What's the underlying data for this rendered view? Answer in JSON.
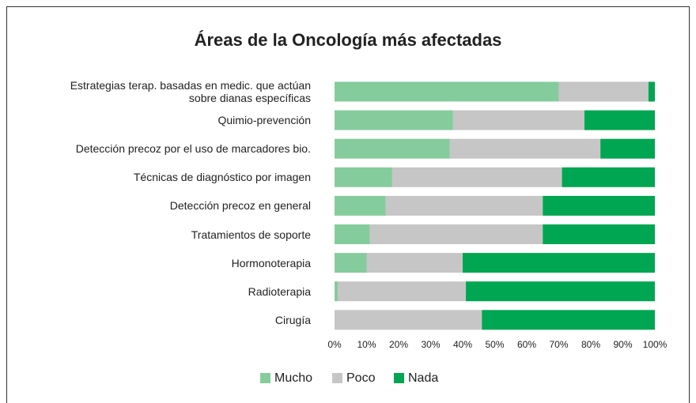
{
  "chart_data": {
    "type": "stacked_barh",
    "title": "Áreas de la Oncología más afectadas",
    "categories": [
      "Estrategias terap. basadas en medic. que actúan\nsobre dianas específicas",
      "Quimio-prevención",
      "Detección precoz por el uso de marcadores bio.",
      "Técnicas de diagnóstico por imagen",
      "Detección precoz en general",
      "Tratamientos de soporte",
      "Hormonoterapia",
      "Radioterapia",
      "Cirugía"
    ],
    "series": [
      {
        "name": "Mucho",
        "color": "#85cc9c",
        "values": [
          70,
          37,
          36,
          18,
          16,
          11,
          10,
          1,
          0
        ]
      },
      {
        "name": "Poco",
        "color": "#c6c6c6",
        "values": [
          28,
          41,
          47,
          53,
          49,
          54,
          30,
          40,
          46
        ]
      },
      {
        "name": "Nada",
        "color": "#00a651",
        "values": [
          2,
          22,
          17,
          29,
          35,
          35,
          60,
          59,
          54
        ]
      }
    ],
    "xlim": [
      0,
      100
    ],
    "xticks": [
      {
        "value": 0,
        "label": "0%"
      },
      {
        "value": 10,
        "label": "10%"
      },
      {
        "value": 20,
        "label": "20%"
      },
      {
        "value": 30,
        "label": "30%"
      },
      {
        "value": 40,
        "label": "40%"
      },
      {
        "value": 50,
        "label": "50%"
      },
      {
        "value": 60,
        "label": "60%"
      },
      {
        "value": 70,
        "label": "70%"
      },
      {
        "value": 80,
        "label": "80%"
      },
      {
        "value": 90,
        "label": "90%"
      },
      {
        "value": 100,
        "label": "100%"
      }
    ],
    "legend": "bottom",
    "grid": false
  }
}
